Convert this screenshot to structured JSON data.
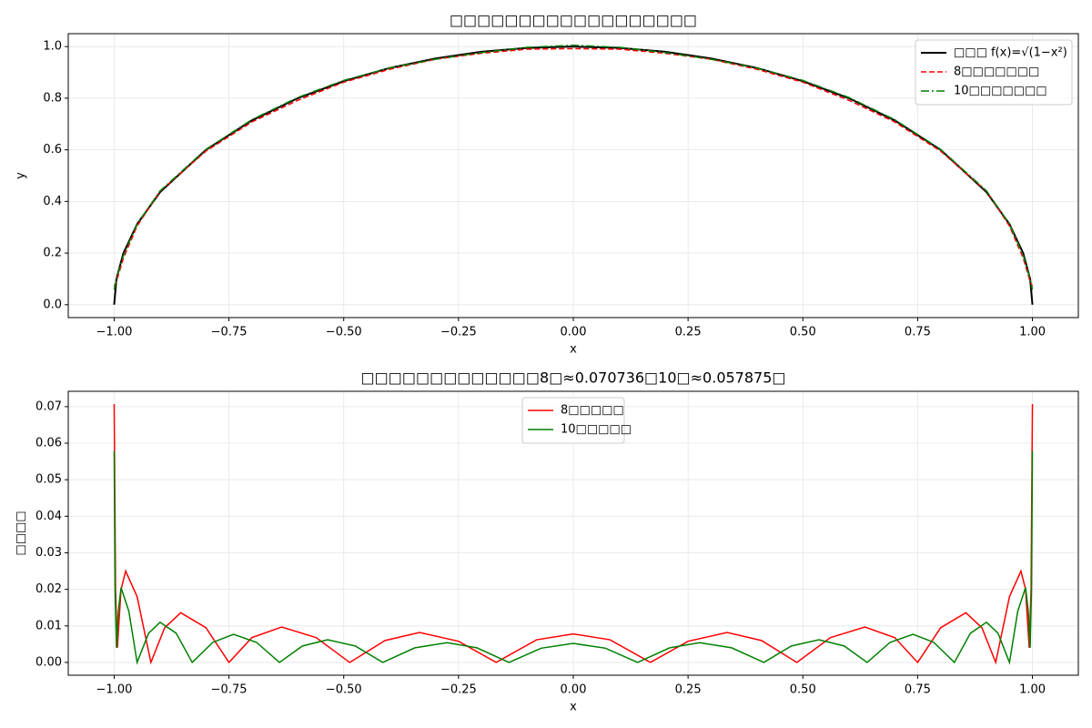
{
  "chart_data": [
    {
      "type": "line",
      "title": "□□□□□□□□□□□□□□□□□□",
      "xlabel": "x",
      "ylabel": "y",
      "xlim": [
        -1.1,
        1.1
      ],
      "ylim": [
        -0.05,
        1.05
      ],
      "xticks": [
        {
          "value": -1,
          "label": "−1.00"
        },
        {
          "value": -0.75,
          "label": "−0.75"
        },
        {
          "value": -0.5,
          "label": "−0.50"
        },
        {
          "value": -0.25,
          "label": "−0.25"
        },
        {
          "value": 0,
          "label": "0.00"
        },
        {
          "value": 0.25,
          "label": "0.25"
        },
        {
          "value": 0.5,
          "label": "0.50"
        },
        {
          "value": 0.75,
          "label": "0.75"
        },
        {
          "value": 1,
          "label": "1.00"
        }
      ],
      "yticks": [
        {
          "value": 0,
          "label": "0.0"
        },
        {
          "value": 0.2,
          "label": "0.2"
        },
        {
          "value": 0.4,
          "label": "0.4"
        },
        {
          "value": 0.6,
          "label": "0.6"
        },
        {
          "value": 0.8,
          "label": "0.8"
        },
        {
          "value": 1,
          "label": "1.0"
        }
      ],
      "grid": true,
      "legend": "upper right",
      "series": [
        {
          "name": "□□□ f(x)=√(1−x²)",
          "color": "#000000",
          "linestyle": "solid",
          "width": 2,
          "x": [
            -1,
            -0.995,
            -0.98,
            -0.95,
            -0.9,
            -0.8,
            -0.7,
            -0.6,
            -0.5,
            -0.4,
            -0.3,
            -0.2,
            -0.1,
            0,
            0.1,
            0.2,
            0.3,
            0.4,
            0.5,
            0.6,
            0.7,
            0.8,
            0.9,
            0.95,
            0.98,
            0.995,
            1
          ],
          "values": [
            0,
            0.0999,
            0.199,
            0.312,
            0.436,
            0.6,
            0.714,
            0.8,
            0.866,
            0.917,
            0.954,
            0.98,
            0.995,
            1,
            0.995,
            0.98,
            0.954,
            0.917,
            0.866,
            0.8,
            0.714,
            0.6,
            0.436,
            0.312,
            0.199,
            0.0999,
            0
          ]
        },
        {
          "name": "8□□□□□□□",
          "color": "#ff0000",
          "linestyle": "dashed",
          "width": 1.5,
          "x": [
            -1,
            -0.995,
            -0.98,
            -0.95,
            -0.9,
            -0.8,
            -0.7,
            -0.6,
            -0.5,
            -0.4,
            -0.3,
            -0.2,
            -0.1,
            0,
            0.1,
            0.2,
            0.3,
            0.4,
            0.5,
            0.6,
            0.7,
            0.8,
            0.9,
            0.95,
            0.98,
            0.995,
            1
          ],
          "values": [
            0.071,
            0.09,
            0.18,
            0.305,
            0.44,
            0.595,
            0.708,
            0.792,
            0.862,
            0.912,
            0.951,
            0.974,
            0.99,
            0.992,
            0.99,
            0.974,
            0.951,
            0.912,
            0.862,
            0.792,
            0.708,
            0.595,
            0.44,
            0.305,
            0.18,
            0.09,
            0.071
          ]
        },
        {
          "name": "10□□□□□□□",
          "color": "#008000",
          "linestyle": "dashdot",
          "width": 1.5,
          "x": [
            -1,
            -0.995,
            -0.98,
            -0.95,
            -0.9,
            -0.8,
            -0.7,
            -0.6,
            -0.5,
            -0.4,
            -0.3,
            -0.2,
            -0.1,
            0,
            0.1,
            0.2,
            0.3,
            0.4,
            0.5,
            0.6,
            0.7,
            0.8,
            0.9,
            0.95,
            0.98,
            0.995,
            1
          ],
          "values": [
            0.058,
            0.1,
            0.19,
            0.312,
            0.441,
            0.602,
            0.717,
            0.803,
            0.869,
            0.917,
            0.951,
            0.977,
            0.997,
            1.005,
            0.997,
            0.977,
            0.951,
            0.917,
            0.869,
            0.803,
            0.717,
            0.602,
            0.441,
            0.312,
            0.19,
            0.1,
            0.058
          ]
        }
      ]
    },
    {
      "type": "line",
      "title": "□□□□□□□□□□□□□8□≈0.070736□10□≈0.057875□",
      "xlabel": "x",
      "ylabel": "□□□□",
      "xlim": [
        -1.1,
        1.1
      ],
      "ylim": [
        -0.0035,
        0.0742
      ],
      "xticks": [
        {
          "value": -1,
          "label": "−1.00"
        },
        {
          "value": -0.75,
          "label": "−0.75"
        },
        {
          "value": -0.5,
          "label": "−0.50"
        },
        {
          "value": -0.25,
          "label": "−0.25"
        },
        {
          "value": 0,
          "label": "0.00"
        },
        {
          "value": 0.25,
          "label": "0.25"
        },
        {
          "value": 0.5,
          "label": "0.50"
        },
        {
          "value": 0.75,
          "label": "0.75"
        },
        {
          "value": 1,
          "label": "1.00"
        }
      ],
      "yticks": [
        {
          "value": 0,
          "label": "0.00"
        },
        0.01,
        0.02,
        0.03,
        0.04,
        0.05,
        0.06,
        0.07
      ],
      "grid": true,
      "legend": "upper center",
      "series": [
        {
          "name": "8□□□□□",
          "color": "#ff0000",
          "linestyle": "solid",
          "width": 1.5,
          "x": [
            -1,
            -0.997,
            -0.993,
            -0.985,
            -0.975,
            -0.95,
            -0.92,
            -0.89,
            -0.855,
            -0.8,
            -0.75,
            -0.7,
            -0.635,
            -0.56,
            -0.487,
            -0.41,
            -0.335,
            -0.25,
            -0.168,
            -0.08,
            0,
            0.08,
            0.168,
            0.25,
            0.335,
            0.41,
            0.487,
            0.56,
            0.635,
            0.7,
            0.75,
            0.8,
            0.855,
            0.89,
            0.92,
            0.95,
            0.975,
            0.985,
            0.993,
            0.997,
            1
          ],
          "values": [
            0.0707,
            0.02,
            0.004,
            0.02,
            0.025,
            0.018,
            0,
            0.0095,
            0.0136,
            0.0095,
            0,
            0.0068,
            0.0097,
            0.0068,
            0,
            0.006,
            0.0082,
            0.0058,
            0,
            0.0062,
            0.0078,
            0.0062,
            0,
            0.0058,
            0.0082,
            0.006,
            0,
            0.0068,
            0.0097,
            0.0068,
            0,
            0.0095,
            0.0136,
            0.0095,
            0,
            0.018,
            0.025,
            0.02,
            0.004,
            0.02,
            0.0707
          ]
        },
        {
          "name": "10□□□□□",
          "color": "#008000",
          "linestyle": "solid",
          "width": 1.5,
          "x": [
            -1,
            -0.998,
            -0.995,
            -0.991,
            -0.985,
            -0.968,
            -0.95,
            -0.925,
            -0.9,
            -0.865,
            -0.83,
            -0.785,
            -0.74,
            -0.69,
            -0.64,
            -0.59,
            -0.535,
            -0.475,
            -0.415,
            -0.345,
            -0.275,
            -0.21,
            -0.14,
            -0.07,
            0,
            0.07,
            0.14,
            0.21,
            0.275,
            0.345,
            0.415,
            0.475,
            0.535,
            0.59,
            0.64,
            0.69,
            0.74,
            0.785,
            0.83,
            0.865,
            0.9,
            0.925,
            0.95,
            0.968,
            0.985,
            0.991,
            0.995,
            0.998,
            1
          ],
          "values": [
            0.0579,
            0.02,
            0.004,
            0.014,
            0.0205,
            0.014,
            0,
            0.008,
            0.011,
            0.008,
            0,
            0.0055,
            0.0077,
            0.0055,
            0,
            0.0045,
            0.0062,
            0.0045,
            0,
            0.004,
            0.0054,
            0.004,
            0,
            0.0039,
            0.0052,
            0.0039,
            0,
            0.004,
            0.0054,
            0.004,
            0,
            0.0045,
            0.0062,
            0.0045,
            0,
            0.0055,
            0.0077,
            0.0055,
            0,
            0.008,
            0.011,
            0.008,
            0,
            0.014,
            0.0205,
            0.014,
            0.004,
            0.02,
            0.0579
          ]
        }
      ]
    }
  ]
}
